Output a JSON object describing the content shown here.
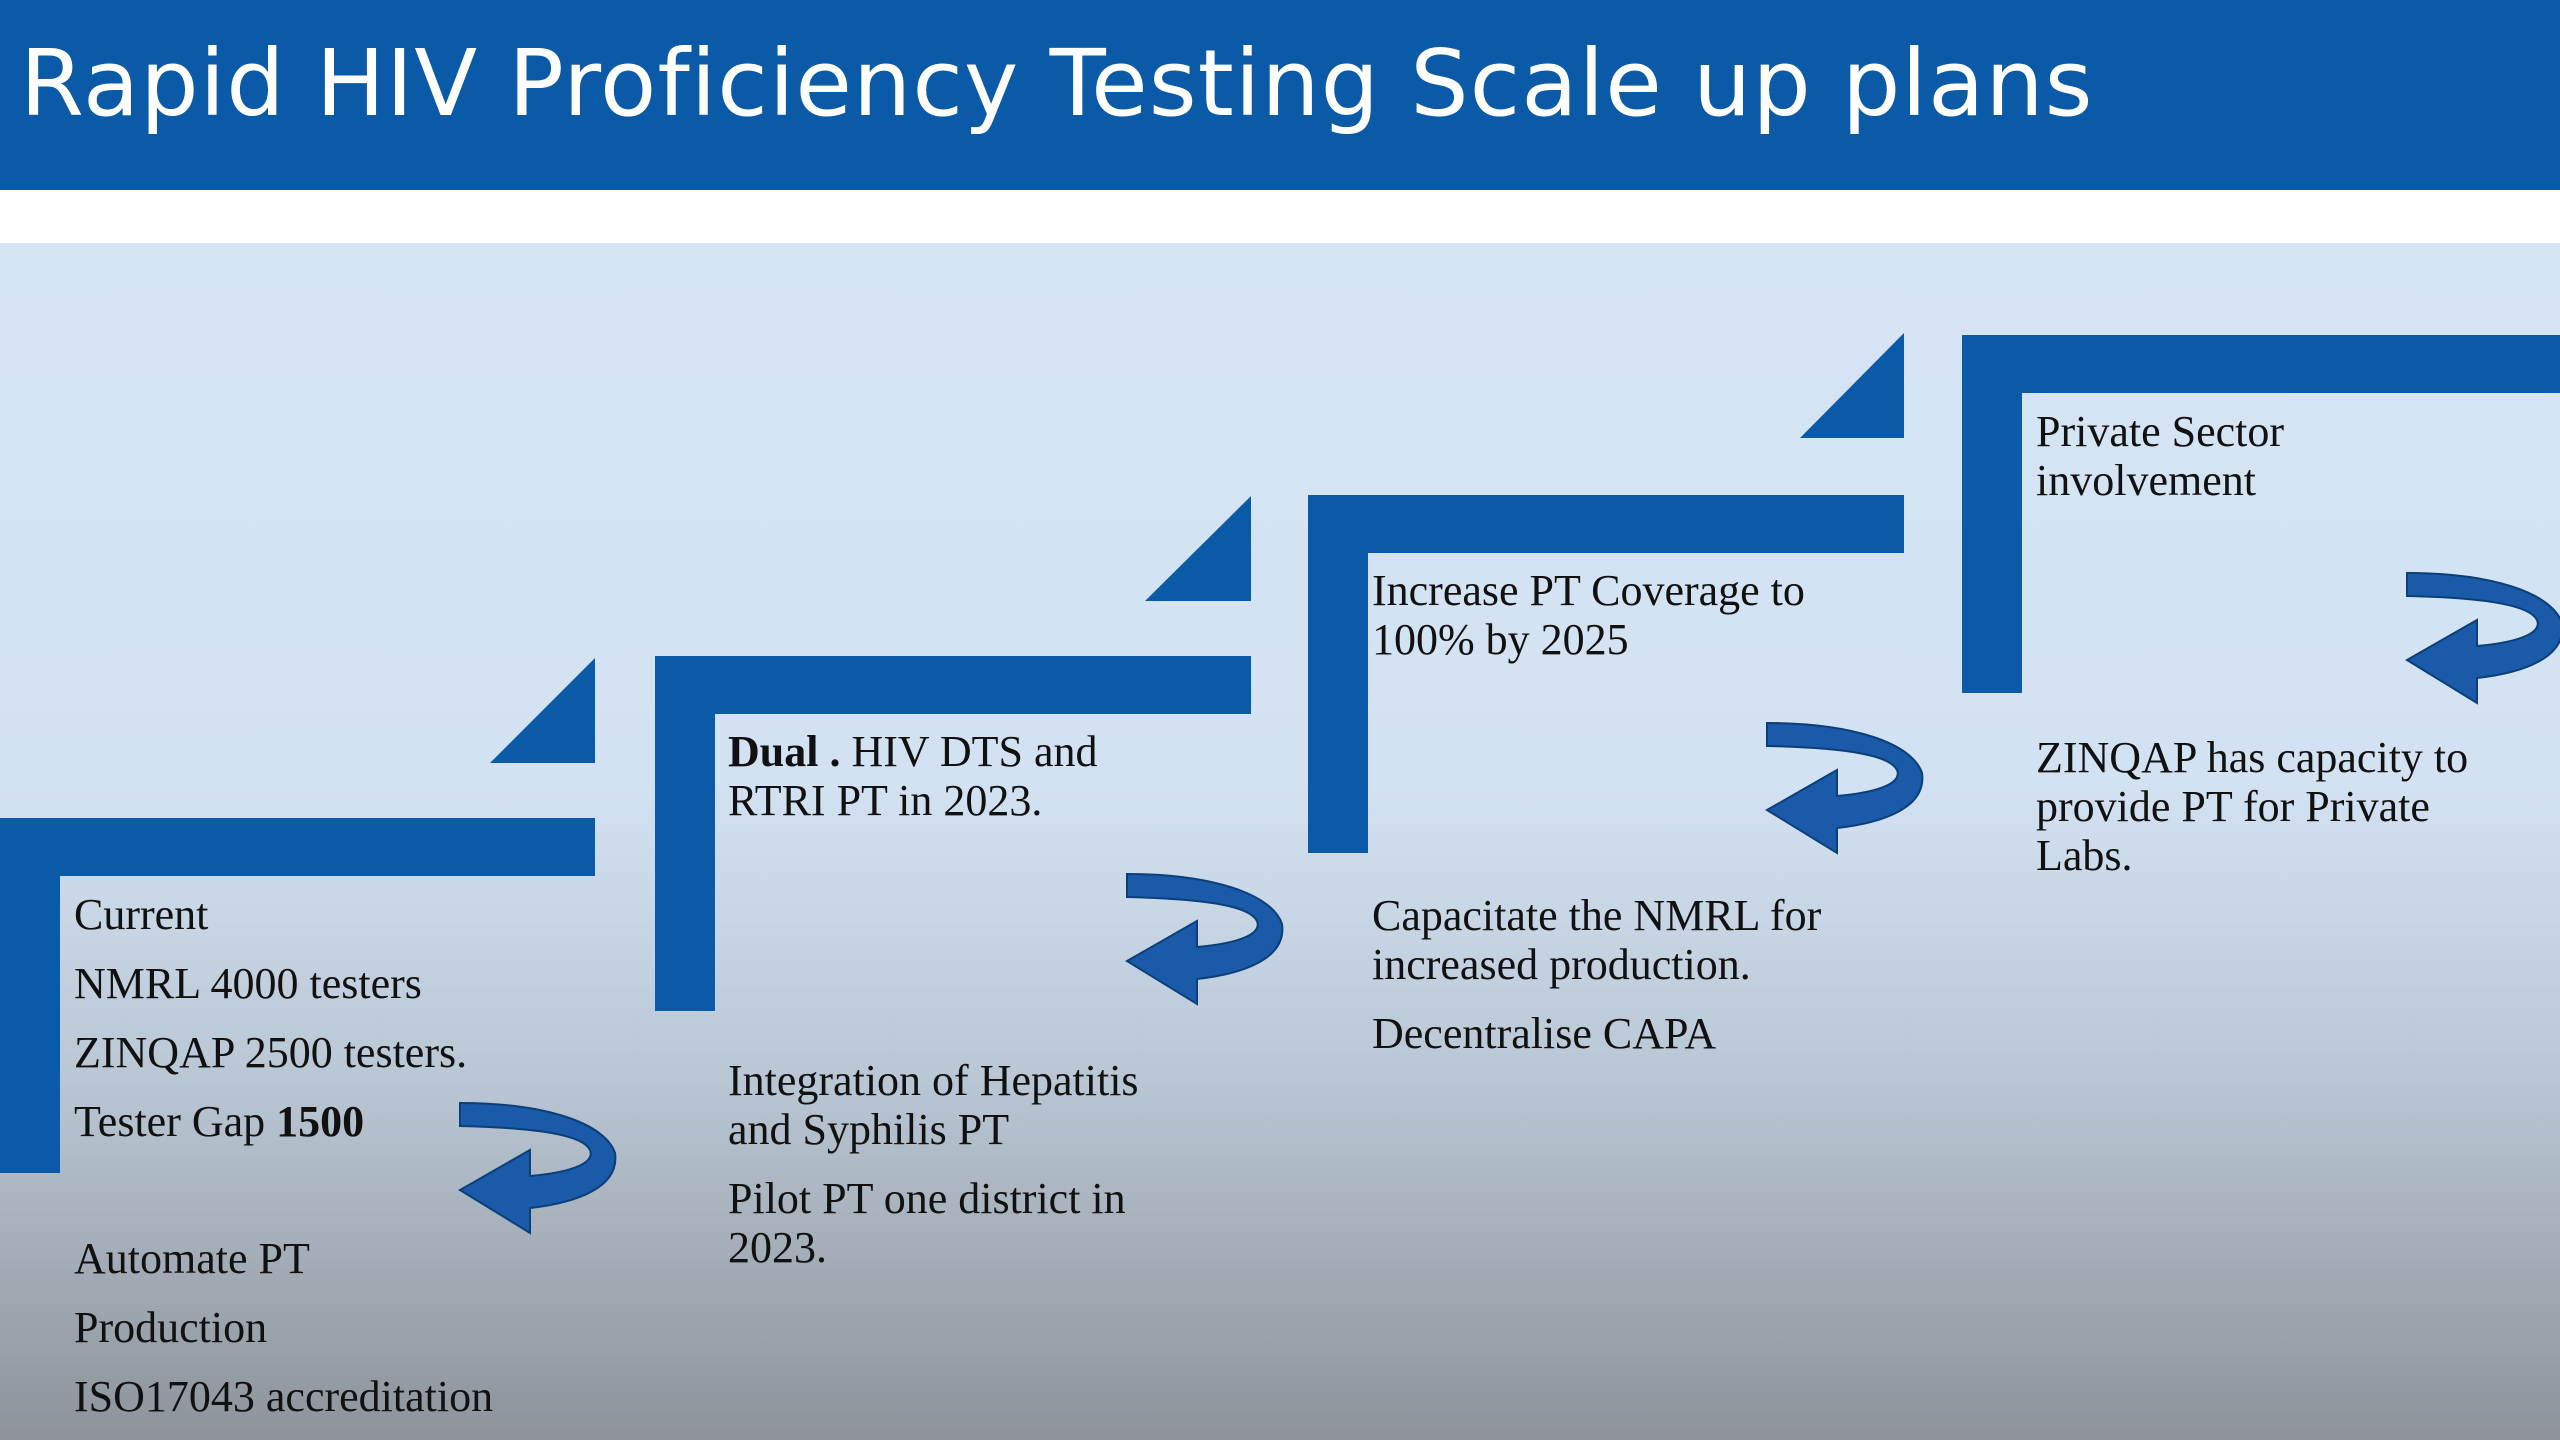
{
  "slide": {
    "title": "Rapid HIV Proficiency Testing Scale up plans"
  },
  "colors": {
    "title_bar": "#0a5aa8",
    "step_blue": "#0a5aa8",
    "arrow_blue": "#1a5aa8"
  },
  "steps": [
    {
      "top_lines": [
        "Current",
        "NMRL 4000 testers",
        "ZINQAP 2500 testers."
      ],
      "gap_label": "Tester Gap ",
      "gap_value": "1500",
      "bottom_lines": [
        "Automate PT",
        "Production",
        "ISO17043 accreditation"
      ]
    },
    {
      "top_bold": "Dual .",
      "top_rest": " HIV DTS and",
      "top_line2": "RTRI PT in 2023.",
      "bottom_lines": [
        "Integration of Hepatitis",
        "and Syphilis PT",
        "Pilot PT one district in",
        "2023."
      ]
    },
    {
      "top_lines": [
        "Increase PT Coverage to",
        "100% by 2025"
      ],
      "bottom_lines": [
        "Capacitate the NMRL for",
        "increased production.",
        "Decentralise CAPA"
      ]
    },
    {
      "top_lines": [
        "Private Sector",
        "involvement"
      ],
      "bottom_lines": [
        "ZINQAP has capacity to",
        "provide PT for Private",
        "Labs."
      ]
    }
  ]
}
